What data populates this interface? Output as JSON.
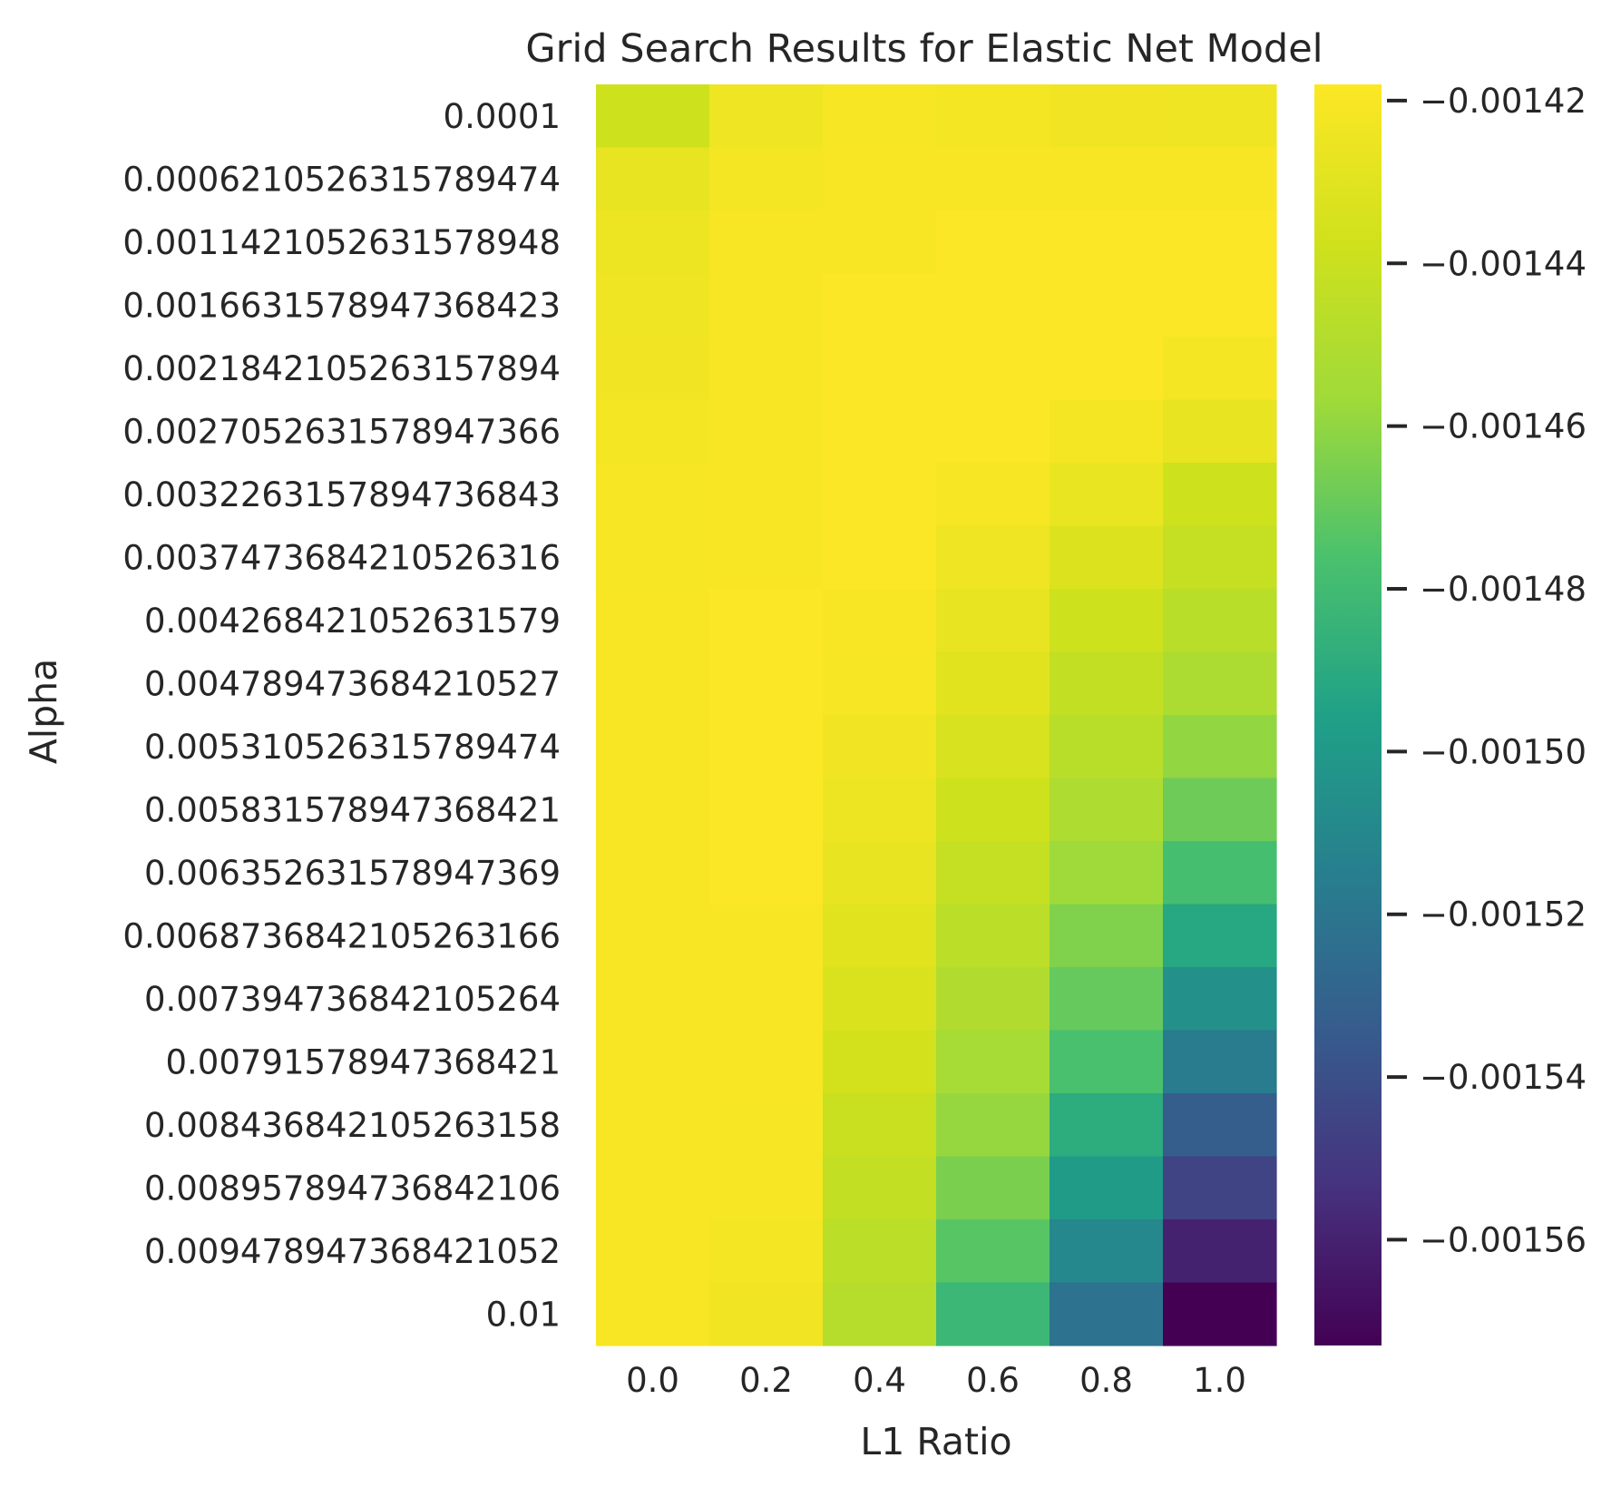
{
  "chart_data": {
    "type": "heatmap",
    "title": "Grid Search Results for Elastic Net Model",
    "xlabel": "L1 Ratio",
    "ylabel": "Alpha",
    "x_categories": [
      "0.0",
      "0.2",
      "0.4",
      "0.6",
      "0.8",
      "1.0"
    ],
    "y_categories": [
      "0.0001",
      "0.000621052631578947​4",
      "0.001142105263157894​8",
      "0.001663157894736842​3",
      "0.002184210526315789​4",
      "0.002705263157894736​6",
      "0.003226315789473684​3",
      "0.003747368421052631​6",
      "0.00426842105263157​9",
      "0.00478947368421052​7",
      "0.005310526315789474",
      "0.005831578947368421",
      "0.006352631578947369",
      "0.006873684210526316​6",
      "0.007394736842105264",
      "0.00791578947368421",
      "0.008436842105263158",
      "0.008957894736842106",
      "0.009478947368421052",
      "0.01"
    ],
    "values": [
      [
        -0.001438,
        -0.001424,
        -0.001421,
        -0.001422,
        -0.001423,
        -0.001424
      ],
      [
        -0.001427,
        -0.001422,
        -0.00142,
        -0.00142,
        -0.00142,
        -0.00142
      ],
      [
        -0.001425,
        -0.00142,
        -0.00142,
        -0.001419,
        -0.001419,
        -0.001419
      ],
      [
        -0.001424,
        -0.00142,
        -0.001419,
        -0.001419,
        -0.001419,
        -0.001419
      ],
      [
        -0.001423,
        -0.00142,
        -0.001419,
        -0.001419,
        -0.001419,
        -0.001422
      ],
      [
        -0.001422,
        -0.00142,
        -0.001419,
        -0.001419,
        -0.001422,
        -0.001427
      ],
      [
        -0.001421,
        -0.00142,
        -0.001419,
        -0.001421,
        -0.001426,
        -0.001438
      ],
      [
        -0.001421,
        -0.00142,
        -0.001419,
        -0.001424,
        -0.001432,
        -0.001442
      ],
      [
        -0.00142,
        -0.001419,
        -0.00142,
        -0.001427,
        -0.001438,
        -0.001447
      ],
      [
        -0.00142,
        -0.001419,
        -0.001421,
        -0.00143,
        -0.001443,
        -0.001452
      ],
      [
        -0.00142,
        -0.001419,
        -0.001423,
        -0.001434,
        -0.001447,
        -0.00146
      ],
      [
        -0.00142,
        -0.001419,
        -0.001425,
        -0.001438,
        -0.001451,
        -0.001468
      ],
      [
        -0.00142,
        -0.001419,
        -0.001427,
        -0.001442,
        -0.001457,
        -0.001478
      ],
      [
        -0.00142,
        -0.00142,
        -0.00143,
        -0.001446,
        -0.001464,
        -0.001492
      ],
      [
        -0.00142,
        -0.00142,
        -0.001433,
        -0.00145,
        -0.00147,
        -0.001505
      ],
      [
        -0.00142,
        -0.00142,
        -0.001436,
        -0.001454,
        -0.001477,
        -0.001517
      ],
      [
        -0.00142,
        -0.001421,
        -0.00144,
        -0.001459,
        -0.001489,
        -0.001533
      ],
      [
        -0.00142,
        -0.001421,
        -0.001443,
        -0.001465,
        -0.001499,
        -0.001546
      ],
      [
        -0.00142,
        -0.001422,
        -0.001446,
        -0.001473,
        -0.00151,
        -0.00156
      ],
      [
        -0.00142,
        -0.001423,
        -0.001448,
        -0.001482,
        -0.001522,
        -0.001575
      ]
    ],
    "colormap": "viridis",
    "vmin": -0.001573,
    "vmax": -0.001418,
    "colorbar_ticks": [
      -0.00142,
      -0.00144,
      -0.00146,
      -0.00148,
      -0.0015,
      -0.00152,
      -0.00154,
      -0.00156
    ],
    "colorbar_tick_labels": [
      "−0.00142",
      "−0.00144",
      "−0.00146",
      "−0.00148",
      "−0.00150",
      "−0.00152",
      "−0.00154",
      "−0.00156"
    ],
    "grid": false,
    "legend": "colorbar-right"
  }
}
